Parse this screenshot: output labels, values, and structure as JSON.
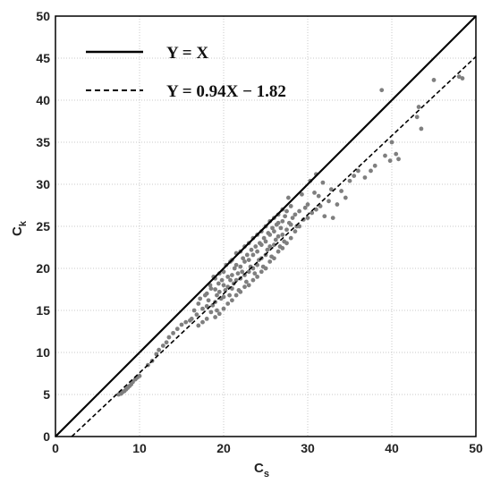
{
  "chart_data": {
    "type": "scatter",
    "xlabel": "C",
    "xlabel_sub": "s",
    "ylabel": "C",
    "ylabel_sub": "k",
    "xlim": [
      0,
      50
    ],
    "ylim": [
      0,
      50
    ],
    "xticks": [
      0,
      10,
      20,
      30,
      40,
      50
    ],
    "yticks": [
      0,
      5,
      10,
      15,
      20,
      25,
      30,
      35,
      40,
      45,
      50
    ],
    "grid": true,
    "legend_position": "top-left",
    "lines": [
      {
        "name": "Y = X",
        "style": "solid",
        "slope": 1,
        "intercept": 0,
        "color": "#000000"
      },
      {
        "name": "Y = 0.94X − 1.82",
        "style": "dashed",
        "slope": 0.94,
        "intercept": -1.82,
        "color": "#000000"
      }
    ],
    "points_color": "#7f7f7f",
    "points": [
      [
        7.5,
        5.0
      ],
      [
        7.8,
        5.1
      ],
      [
        8.0,
        5.3
      ],
      [
        8.2,
        5.4
      ],
      [
        8.4,
        5.6
      ],
      [
        8.6,
        5.8
      ],
      [
        8.8,
        6.0
      ],
      [
        9.0,
        6.2
      ],
      [
        9.2,
        6.5
      ],
      [
        9.5,
        6.8
      ],
      [
        9.7,
        7.0
      ],
      [
        10.0,
        7.2
      ],
      [
        11.0,
        8.5
      ],
      [
        11.5,
        9.0
      ],
      [
        12.0,
        9.8
      ],
      [
        12.3,
        10.3
      ],
      [
        12.8,
        10.8
      ],
      [
        13.2,
        11.2
      ],
      [
        13.5,
        11.8
      ],
      [
        14.0,
        12.3
      ],
      [
        14.5,
        12.8
      ],
      [
        15.0,
        13.3
      ],
      [
        15.5,
        13.6
      ],
      [
        16.0,
        13.8
      ],
      [
        16.2,
        14.0
      ],
      [
        16.5,
        15.0
      ],
      [
        16.8,
        14.5
      ],
      [
        17.0,
        13.2
      ],
      [
        17.0,
        15.8
      ],
      [
        17.2,
        16.4
      ],
      [
        17.5,
        15.2
      ],
      [
        17.5,
        13.6
      ],
      [
        17.8,
        16.8
      ],
      [
        18.0,
        14.0
      ],
      [
        18.0,
        15.5
      ],
      [
        18.0,
        17.0
      ],
      [
        18.2,
        16.2
      ],
      [
        18.4,
        18.0
      ],
      [
        18.5,
        14.8
      ],
      [
        18.5,
        17.6
      ],
      [
        18.7,
        15.6
      ],
      [
        18.8,
        19.0
      ],
      [
        19.0,
        14.2
      ],
      [
        19.0,
        16.0
      ],
      [
        19.0,
        17.5
      ],
      [
        19.0,
        18.8
      ],
      [
        19.2,
        15.0
      ],
      [
        19.2,
        16.8
      ],
      [
        19.4,
        18.2
      ],
      [
        19.5,
        14.6
      ],
      [
        19.5,
        17.2
      ],
      [
        19.5,
        19.4
      ],
      [
        19.7,
        16.4
      ],
      [
        19.8,
        18.6
      ],
      [
        20.0,
        15.2
      ],
      [
        20.0,
        16.6
      ],
      [
        20.0,
        18.0
      ],
      [
        20.0,
        19.6
      ],
      [
        20.2,
        17.4
      ],
      [
        20.3,
        20.4
      ],
      [
        20.5,
        15.8
      ],
      [
        20.5,
        17.8
      ],
      [
        20.5,
        19.0
      ],
      [
        20.7,
        16.8
      ],
      [
        20.8,
        18.6
      ],
      [
        20.8,
        20.8
      ],
      [
        21.0,
        16.2
      ],
      [
        21.0,
        17.6
      ],
      [
        21.0,
        19.2
      ],
      [
        21.0,
        21.0
      ],
      [
        21.2,
        18.2
      ],
      [
        21.3,
        20.0
      ],
      [
        21.5,
        16.8
      ],
      [
        21.5,
        18.6
      ],
      [
        21.5,
        20.4
      ],
      [
        21.5,
        21.8
      ],
      [
        21.7,
        19.4
      ],
      [
        21.8,
        17.4
      ],
      [
        22.0,
        17.2
      ],
      [
        22.0,
        18.8
      ],
      [
        22.0,
        20.2
      ],
      [
        22.0,
        22.0
      ],
      [
        22.2,
        19.6
      ],
      [
        22.3,
        21.2
      ],
      [
        22.5,
        17.8
      ],
      [
        22.5,
        19.2
      ],
      [
        22.5,
        20.8
      ],
      [
        22.5,
        22.6
      ],
      [
        22.7,
        18.4
      ],
      [
        22.8,
        21.6
      ],
      [
        23.0,
        18.0
      ],
      [
        23.0,
        19.6
      ],
      [
        23.0,
        21.0
      ],
      [
        23.0,
        23.0
      ],
      [
        23.2,
        20.2
      ],
      [
        23.3,
        22.2
      ],
      [
        23.5,
        18.6
      ],
      [
        23.5,
        20.0
      ],
      [
        23.5,
        21.6
      ],
      [
        23.5,
        23.6
      ],
      [
        23.7,
        19.4
      ],
      [
        23.8,
        22.6
      ],
      [
        24.0,
        19.0
      ],
      [
        24.0,
        20.4
      ],
      [
        24.0,
        22.0
      ],
      [
        24.0,
        24.0
      ],
      [
        24.2,
        21.0
      ],
      [
        24.3,
        23.0
      ],
      [
        24.5,
        19.6
      ],
      [
        24.5,
        21.2
      ],
      [
        24.5,
        22.8
      ],
      [
        24.5,
        24.4
      ],
      [
        24.7,
        20.2
      ],
      [
        24.8,
        23.6
      ],
      [
        25.0,
        20.0
      ],
      [
        25.0,
        21.6
      ],
      [
        25.0,
        23.2
      ],
      [
        25.0,
        25.0
      ],
      [
        25.2,
        22.2
      ],
      [
        25.3,
        24.2
      ],
      [
        25.5,
        20.8
      ],
      [
        25.5,
        22.6
      ],
      [
        25.5,
        24.0
      ],
      [
        25.5,
        25.6
      ],
      [
        25.7,
        21.4
      ],
      [
        25.8,
        24.8
      ],
      [
        26.0,
        21.2
      ],
      [
        26.0,
        22.8
      ],
      [
        26.0,
        24.4
      ],
      [
        26.0,
        26.0
      ],
      [
        26.2,
        23.4
      ],
      [
        26.3,
        25.2
      ],
      [
        26.5,
        22.0
      ],
      [
        26.5,
        23.8
      ],
      [
        26.5,
        25.4
      ],
      [
        26.5,
        26.4
      ],
      [
        26.7,
        22.6
      ],
      [
        26.8,
        24.8
      ],
      [
        27.0,
        22.4
      ],
      [
        27.0,
        24.0
      ],
      [
        27.0,
        25.6
      ],
      [
        27.0,
        27.0
      ],
      [
        27.2,
        23.2
      ],
      [
        27.3,
        26.2
      ],
      [
        27.5,
        23.0
      ],
      [
        27.5,
        24.6
      ],
      [
        27.5,
        26.8
      ],
      [
        27.7,
        28.4
      ],
      [
        27.8,
        25.4
      ],
      [
        28.0,
        23.6
      ],
      [
        28.0,
        25.2
      ],
      [
        28.0,
        27.4
      ],
      [
        28.2,
        26.0
      ],
      [
        28.5,
        24.4
      ],
      [
        28.5,
        26.4
      ],
      [
        28.7,
        25.0
      ],
      [
        29.0,
        25.0
      ],
      [
        29.0,
        26.8
      ],
      [
        29.3,
        28.8
      ],
      [
        29.5,
        25.8
      ],
      [
        29.7,
        27.2
      ],
      [
        30.0,
        26.0
      ],
      [
        30.0,
        27.6
      ],
      [
        30.3,
        30.4
      ],
      [
        30.5,
        26.6
      ],
      [
        30.8,
        29.0
      ],
      [
        31.0,
        27.0
      ],
      [
        31.0,
        31.2
      ],
      [
        31.3,
        28.6
      ],
      [
        31.5,
        27.4
      ],
      [
        31.8,
        30.2
      ],
      [
        32.0,
        26.2
      ],
      [
        32.5,
        28.0
      ],
      [
        32.8,
        29.4
      ],
      [
        33.0,
        26.0
      ],
      [
        33.5,
        27.6
      ],
      [
        34.0,
        29.2
      ],
      [
        34.5,
        28.4
      ],
      [
        35.0,
        30.4
      ],
      [
        35.5,
        31.0
      ],
      [
        36.0,
        31.6
      ],
      [
        36.8,
        30.8
      ],
      [
        37.5,
        31.6
      ],
      [
        38.0,
        32.2
      ],
      [
        38.8,
        41.2
      ],
      [
        39.2,
        33.4
      ],
      [
        39.8,
        32.8
      ],
      [
        40.0,
        35.0
      ],
      [
        40.5,
        33.6
      ],
      [
        40.8,
        33.0
      ],
      [
        43.0,
        38.0
      ],
      [
        43.2,
        39.2
      ],
      [
        43.5,
        36.6
      ],
      [
        45.0,
        42.4
      ],
      [
        48.0,
        42.8
      ],
      [
        48.4,
        42.6
      ]
    ]
  }
}
